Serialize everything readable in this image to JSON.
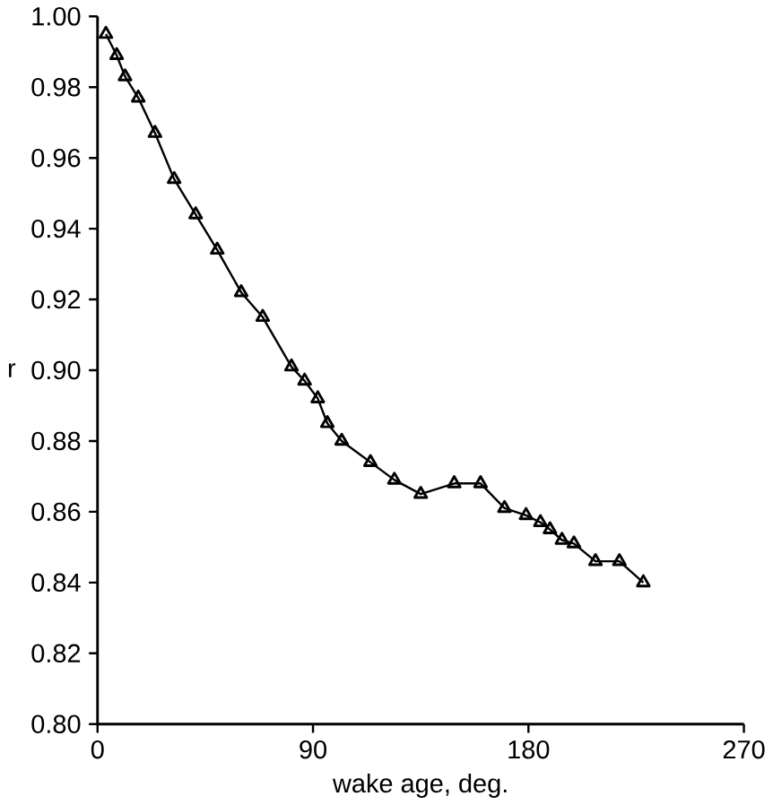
{
  "chart_data": {
    "type": "line",
    "xlabel": "wake age, deg.",
    "ylabel": "r",
    "x": [
      3.5,
      8,
      11.5,
      17,
      24,
      32,
      41,
      50,
      60,
      69,
      81,
      86.5,
      92,
      96,
      102,
      114,
      124,
      135,
      149,
      160,
      170,
      179,
      185,
      189,
      194,
      199,
      208,
      218,
      228
    ],
    "series": [
      {
        "color": "#000000",
        "values": [
          0.995,
          0.989,
          0.983,
          0.977,
          0.967,
          0.954,
          0.944,
          0.934,
          0.922,
          0.915,
          0.901,
          0.897,
          0.892,
          0.885,
          0.88,
          0.874,
          0.869,
          0.865,
          0.868,
          0.868,
          0.861,
          0.859,
          0.857,
          0.855,
          0.852,
          0.851,
          0.846,
          0.846,
          0.84
        ]
      }
    ],
    "xlim": [
      0,
      270
    ],
    "xticks": [
      0,
      90,
      180,
      270
    ],
    "ylim": [
      0.8,
      1.0
    ],
    "yticks": [
      {
        "value": 0.8,
        "label": "0.80"
      },
      {
        "value": 0.82,
        "label": "0.82"
      },
      {
        "value": 0.84,
        "label": "0.84"
      },
      {
        "value": 0.86,
        "label": "0.86"
      },
      {
        "value": 0.88,
        "label": "0.88"
      },
      {
        "value": 0.9,
        "label": "0.90"
      },
      {
        "value": 0.92,
        "label": "0.92"
      },
      {
        "value": 0.94,
        "label": "0.94"
      },
      {
        "value": 0.96,
        "label": "0.96"
      },
      {
        "value": 0.98,
        "label": "0.98"
      },
      {
        "value": 1.0,
        "label": "1.00"
      }
    ],
    "marker": "triangle",
    "line_style": "solid"
  }
}
